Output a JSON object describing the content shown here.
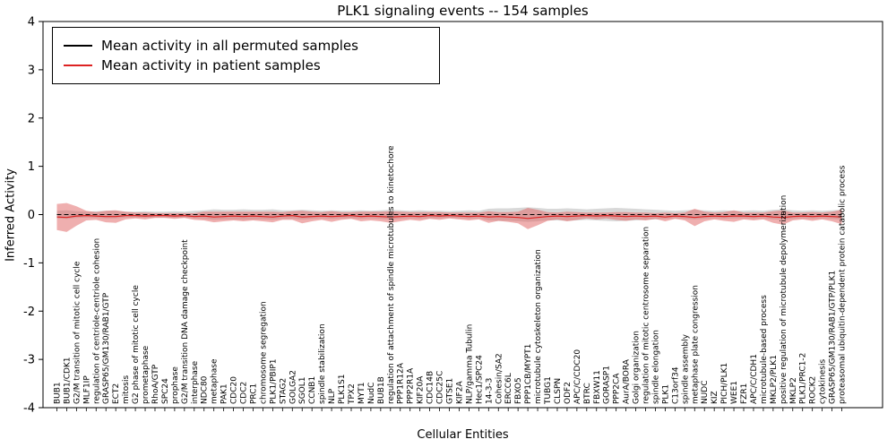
{
  "chart_data": {
    "type": "area",
    "title": "PLK1 signaling events -- 154 samples",
    "xlabel": "Cellular Entities",
    "ylabel": "Inferred Activity",
    "ylim": [
      -4,
      4
    ],
    "yticks": [
      -4,
      -3,
      -2,
      -1,
      0,
      1,
      2,
      3,
      4
    ],
    "grid": false,
    "legend_position": "upper-left",
    "categories": [
      "BUB1",
      "BUB1/CDK1",
      "G2/M transition of mitotic cell cycle",
      "MLF1IP",
      "regulation of centriole-centriole cohesion",
      "GRASP65/GM130/RAB1/GTP",
      "ECT2",
      "mitosis",
      "G2 phase of mitotic cell cycle",
      "prometaphase",
      "RhoA/GTP",
      "SPC24",
      "prophase",
      "G2/M transition DNA damage checkpoint",
      "interphase",
      "NDC80",
      "metaphase",
      "PAK1",
      "CDC20",
      "CDC2",
      "PRC1",
      "chromosome segregation",
      "PLK1/PBIP1",
      "STAG2",
      "GOLGA2",
      "SGOL1",
      "CCNB1",
      "spindle stabilization",
      "NLP",
      "PLK1S1",
      "TPX2",
      "MYT1",
      "NudC",
      "BUB1B",
      "regulation of attachment of spindle microtubules to kinetochore",
      "PPP1R12A",
      "PPP2R1A",
      "KIF20A",
      "CDC14B",
      "CDC25C",
      "GTSE1",
      "KIF2A",
      "NLP/gamma Tubulin",
      "Hec1/SPC24",
      "14-3-3",
      "Cohesin/SA2",
      "ERCC6L",
      "FBXO5",
      "PPP1CB/MYPT1",
      "microtubule cytoskeleton organization",
      "TUBG1",
      "CLSPN",
      "ODF2",
      "APC/C/CDC20",
      "BTRC",
      "FBXW11",
      "GORASP1",
      "PPP2CA",
      "AurA/BORA",
      "Golgi organization",
      "regulation of mitotic centrosome separation",
      "spindle elongation",
      "PLK1",
      "C13orf34",
      "spindle assembly",
      "metaphase plate congression",
      "NUDC",
      "KIZ",
      "PICH/PLK1",
      "WEE1",
      "FZR1",
      "APC/C/CDH1",
      "microtubule-based process",
      "MKLP2/PLK1",
      "positive regulation of microtubule depolymerization",
      "MKLP2",
      "PLK1/PRC1-2",
      "ROCK2",
      "cytokinesis",
      "GRASP65/GM130/RAB1/GTP/PLK1",
      "proteasomal ubiquitin-dependent protein catabolic process"
    ],
    "series": [
      {
        "name": "Mean activity in all permuted samples",
        "line_color": "#000000",
        "band_color": "#c8c8c8",
        "band_opacity": 0.7,
        "mean": [
          0,
          0,
          0,
          0,
          0,
          0,
          0,
          0,
          0,
          0,
          0,
          0,
          0,
          0,
          0,
          0,
          0,
          0,
          0,
          0,
          0,
          0,
          0,
          0,
          0,
          0,
          0,
          0,
          0,
          0,
          0,
          0,
          0,
          0,
          0,
          0,
          0,
          0,
          0,
          0,
          0,
          0,
          0,
          0,
          0,
          0,
          0,
          0,
          0,
          0,
          0,
          0,
          0,
          0,
          0,
          0,
          0,
          0,
          0,
          0,
          0,
          0,
          0,
          0,
          0,
          0,
          0,
          0,
          0,
          0,
          0,
          0,
          0,
          0,
          0,
          0,
          0,
          0,
          0,
          0,
          0
        ],
        "band_halfwidth": [
          0.08,
          0.09,
          0.07,
          0.06,
          0.07,
          0.08,
          0.08,
          0.06,
          0.06,
          0.07,
          0.06,
          0.06,
          0.07,
          0.06,
          0.08,
          0.09,
          0.11,
          0.1,
          0.1,
          0.11,
          0.1,
          0.1,
          0.11,
          0.09,
          0.09,
          0.1,
          0.09,
          0.08,
          0.09,
          0.08,
          0.08,
          0.09,
          0.08,
          0.09,
          0.1,
          0.09,
          0.08,
          0.09,
          0.08,
          0.08,
          0.07,
          0.08,
          0.09,
          0.08,
          0.12,
          0.13,
          0.13,
          0.14,
          0.15,
          0.14,
          0.12,
          0.12,
          0.13,
          0.12,
          0.11,
          0.12,
          0.13,
          0.14,
          0.13,
          0.12,
          0.11,
          0.1,
          0.09,
          0.08,
          0.09,
          0.1,
          0.09,
          0.08,
          0.09,
          0.08,
          0.08,
          0.09,
          0.08,
          0.1,
          0.11,
          0.09,
          0.08,
          0.09,
          0.08,
          0.09,
          0.1
        ]
      },
      {
        "name": "Mean activity in patient samples",
        "line_color": "#dd2222",
        "band_color": "#e06060",
        "band_opacity": 0.5,
        "mean": [
          -0.05,
          -0.06,
          -0.03,
          -0.02,
          -0.03,
          -0.04,
          -0.04,
          -0.02,
          -0.02,
          -0.03,
          -0.02,
          -0.02,
          -0.03,
          -0.02,
          -0.04,
          -0.03,
          -0.05,
          -0.04,
          -0.03,
          -0.04,
          -0.03,
          -0.04,
          -0.05,
          -0.03,
          -0.02,
          -0.05,
          -0.04,
          -0.03,
          -0.04,
          -0.03,
          -0.02,
          -0.04,
          -0.03,
          -0.04,
          -0.05,
          -0.04,
          -0.03,
          -0.04,
          -0.02,
          -0.03,
          -0.02,
          -0.03,
          -0.04,
          -0.03,
          -0.05,
          -0.04,
          -0.05,
          -0.06,
          -0.08,
          -0.06,
          -0.04,
          -0.03,
          -0.04,
          -0.03,
          -0.02,
          -0.03,
          -0.02,
          -0.03,
          -0.04,
          -0.03,
          -0.04,
          -0.03,
          -0.05,
          -0.03,
          -0.04,
          -0.06,
          -0.04,
          -0.03,
          -0.04,
          -0.03,
          -0.03,
          -0.04,
          -0.03,
          -0.05,
          -0.06,
          -0.04,
          -0.03,
          -0.04,
          -0.03,
          -0.04,
          -0.05
        ],
        "band_halfwidth": [
          0.27,
          0.3,
          0.2,
          0.1,
          0.08,
          0.12,
          0.13,
          0.08,
          0.06,
          0.07,
          0.05,
          0.05,
          0.06,
          0.05,
          0.07,
          0.09,
          0.11,
          0.1,
          0.09,
          0.1,
          0.09,
          0.1,
          0.11,
          0.08,
          0.09,
          0.13,
          0.1,
          0.08,
          0.11,
          0.08,
          0.07,
          0.1,
          0.09,
          0.1,
          0.12,
          0.1,
          0.08,
          0.09,
          0.07,
          0.08,
          0.06,
          0.07,
          0.08,
          0.07,
          0.12,
          0.09,
          0.1,
          0.12,
          0.22,
          0.16,
          0.09,
          0.07,
          0.1,
          0.08,
          0.06,
          0.07,
          0.06,
          0.08,
          0.09,
          0.07,
          0.08,
          0.06,
          0.09,
          0.06,
          0.08,
          0.18,
          0.1,
          0.07,
          0.09,
          0.12,
          0.07,
          0.08,
          0.07,
          0.12,
          0.15,
          0.08,
          0.07,
          0.09,
          0.07,
          0.1,
          0.15
        ]
      }
    ]
  }
}
